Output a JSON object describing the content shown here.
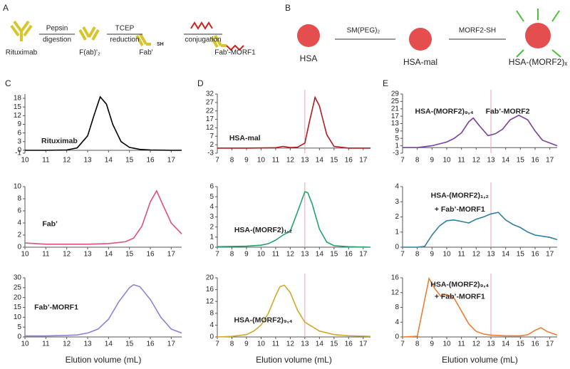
{
  "schematic": {
    "panel_a": "A",
    "panel_b": "B",
    "rituximab": "Rituximab",
    "pepsin": "Pepsin",
    "digestion": "digestion",
    "fab2": "F(ab)'₂",
    "tcep": "TCEP",
    "reduction": "reduction",
    "fab": "Fab'",
    "sh": "SH",
    "conjugation": "conjugation",
    "fab_morf1": "Fab'-MORF1",
    "hsa": "HSA",
    "smpeg": "SM(PEG)₂",
    "hsa_mal": "HSA-mal",
    "morf2sh": "MORF2-SH",
    "hsa_morf2x": "HSA-(MORF2)ₓ"
  },
  "chart_data": [
    {
      "type": "line",
      "panel": "C",
      "color": "#000000",
      "annotations": [
        "Rituximab"
      ],
      "x": [
        10,
        11,
        12,
        12.5,
        13,
        13.3,
        13.6,
        13.9,
        14.2,
        14.6,
        15,
        15.5,
        16,
        17,
        17.5
      ],
      "values": [
        0,
        0,
        0.1,
        0.8,
        5,
        12,
        18.5,
        16,
        9,
        3,
        1,
        0.3,
        0.1,
        0,
        0
      ],
      "xlim": [
        10,
        17.5
      ],
      "xticks": [
        10,
        11,
        12,
        13,
        14,
        15,
        16,
        17
      ],
      "ylim": [
        -1,
        19.5
      ],
      "yticks": [
        -1,
        0,
        3,
        6,
        9,
        12,
        15,
        18
      ]
    },
    {
      "type": "line",
      "color": "#e0507a",
      "annotations": [
        "Fab’"
      ],
      "x": [
        10,
        11,
        12,
        13,
        14,
        14.8,
        15.2,
        15.6,
        16,
        16.3,
        16.6,
        17,
        17.5
      ],
      "values": [
        0.7,
        0.5,
        0.5,
        0.5,
        0.6,
        0.9,
        1.5,
        3.5,
        7.5,
        9.3,
        7,
        4,
        2.2
      ],
      "xlim": [
        10,
        17.5
      ],
      "xticks": [
        10,
        11,
        12,
        13,
        14,
        15,
        16,
        17
      ],
      "ylim": [
        0,
        10
      ],
      "yticks": [
        0,
        2,
        4,
        6,
        8,
        10
      ]
    },
    {
      "type": "line",
      "color": "#8c82d8",
      "annotations": [
        "Fab’-MORF1"
      ],
      "xlabel": "Elution volume (mL)",
      "x": [
        10,
        11,
        12,
        12.5,
        13,
        13.5,
        14,
        14.5,
        15,
        15.2,
        15.5,
        16,
        16.5,
        17,
        17.5
      ],
      "values": [
        0.5,
        0.5,
        0.8,
        1,
        2,
        4,
        9,
        18,
        25,
        26.5,
        25.5,
        19,
        10,
        4,
        2
      ],
      "xlim": [
        10,
        17.5
      ],
      "xticks": [
        10,
        11,
        12,
        13,
        14,
        15,
        16,
        17
      ],
      "ylim": [
        0,
        30
      ],
      "yticks": [
        0,
        5,
        10,
        15,
        20,
        25,
        30
      ]
    },
    {
      "type": "line",
      "panel": "D",
      "color": "#b31b1b",
      "annotations": [
        "HSA-mal"
      ],
      "vline": 13,
      "x": [
        7,
        9,
        11,
        11.5,
        12,
        12.5,
        13,
        13.3,
        13.7,
        14,
        14.5,
        15,
        16,
        17.5
      ],
      "values": [
        0,
        0,
        0.2,
        1,
        0.3,
        0.5,
        3,
        15,
        30,
        25,
        8,
        1,
        0,
        0
      ],
      "xlim": [
        7,
        17.5
      ],
      "xticks": [
        7,
        8,
        9,
        10,
        11,
        12,
        13,
        14,
        15,
        16,
        17
      ],
      "ylim": [
        -3,
        32
      ],
      "yticks": [
        -3,
        2,
        7,
        12,
        17,
        22,
        27,
        32
      ]
    },
    {
      "type": "line",
      "color": "#22a36b",
      "annotations": [
        "HSA-(MORF2)₁,₂"
      ],
      "vline": 13,
      "x": [
        7,
        9,
        10,
        10.5,
        11,
        11.5,
        12,
        12.5,
        13,
        13.2,
        13.5,
        14,
        14.5,
        15,
        16,
        17.5
      ],
      "values": [
        0.05,
        0.1,
        0.2,
        0.35,
        0.7,
        1.2,
        1.6,
        3.5,
        5.5,
        5.4,
        4.3,
        1.8,
        0.5,
        0.15,
        0.05,
        0
      ],
      "xlim": [
        7,
        17.5
      ],
      "xticks": [
        7,
        8,
        9,
        10,
        11,
        12,
        13,
        14,
        15,
        16,
        17
      ],
      "ylim": [
        0,
        6
      ],
      "yticks": [
        0,
        1,
        2,
        3,
        4,
        5,
        6
      ]
    },
    {
      "type": "line",
      "color": "#d4a72c",
      "annotations": [
        "HSA-(MORF2)₉,₄"
      ],
      "vline": 13,
      "xlabel": "Elution volume (mL)",
      "x": [
        7,
        8,
        9,
        9.5,
        10,
        10.5,
        11,
        11.3,
        11.6,
        12,
        12.5,
        13,
        14,
        15,
        16,
        17.5
      ],
      "values": [
        0,
        0.2,
        0.8,
        2,
        4,
        8,
        14,
        17,
        17.5,
        15,
        9,
        5,
        2,
        0.8,
        0.4,
        0.2
      ],
      "xlim": [
        7,
        17.5
      ],
      "xticks": [
        7,
        8,
        9,
        10,
        11,
        12,
        13,
        14,
        15,
        16,
        17
      ],
      "ylim": [
        0,
        20
      ],
      "yticks": [
        0,
        4,
        8,
        12,
        16,
        20
      ]
    },
    {
      "type": "line",
      "panel": "E",
      "color": "#7a3fa0",
      "annotations": [
        "HSA-(MORF2)₉,₄",
        "Fab’-MORF2"
      ],
      "vline": 13,
      "x": [
        7,
        8,
        9,
        10,
        10.5,
        11,
        11.5,
        11.8,
        12.2,
        12.8,
        13.3,
        13.8,
        14.3,
        14.9,
        15.5,
        16,
        16.5,
        17.5
      ],
      "values": [
        0,
        0,
        1,
        3,
        5,
        8,
        14,
        16,
        12,
        6.5,
        7.5,
        10,
        15,
        17.5,
        15,
        9,
        4,
        1
      ],
      "xlim": [
        7,
        17.5
      ],
      "xticks": [
        7,
        8,
        9,
        10,
        11,
        12,
        13,
        14,
        15,
        16,
        17
      ],
      "ylim": [
        -3,
        29
      ],
      "yticks": [
        -3,
        1,
        5,
        9,
        13,
        17,
        21,
        25,
        29
      ]
    },
    {
      "type": "line",
      "color": "#2f7fa0",
      "annotations": [
        "HSA-(MORF2)₁,₂",
        "+ Fab’-MORF1"
      ],
      "vline": 13,
      "x": [
        7,
        8,
        8.5,
        9,
        9.5,
        10,
        10.5,
        11,
        11.5,
        12,
        12.5,
        13,
        13.5,
        14,
        14.5,
        15,
        15.5,
        16,
        17,
        17.5
      ],
      "values": [
        0,
        0,
        0.05,
        0.8,
        1.4,
        1.75,
        1.8,
        1.7,
        1.6,
        1.85,
        2,
        2.2,
        2.3,
        1.8,
        1.5,
        1.3,
        1,
        0.8,
        0.65,
        0.5
      ],
      "xlim": [
        7,
        17.5
      ],
      "xticks": [
        7,
        8,
        9,
        10,
        11,
        12,
        13,
        14,
        15,
        16,
        17
      ],
      "ylim": [
        0,
        4
      ],
      "yticks": [
        0,
        1,
        2,
        3,
        4
      ]
    },
    {
      "type": "line",
      "color": "#ec7d31",
      "annotations": [
        "HSA-(MORF2)₉,₄",
        "+ Fab’-MORF1"
      ],
      "vline": 13,
      "xlabel": "Elution volume (mL)",
      "x": [
        7,
        8,
        8.5,
        8.8,
        9.2,
        9.6,
        10,
        10.5,
        11,
        11.5,
        12,
        12.5,
        13,
        14,
        15,
        15.5,
        16,
        16.4,
        16.8,
        17.5
      ],
      "values": [
        0,
        0.2,
        10,
        15.8,
        13,
        11,
        11.5,
        10.5,
        7,
        3.5,
        1.5,
        0.8,
        0.5,
        0.3,
        0.3,
        0.6,
        1.8,
        2.5,
        1.5,
        0.5
      ],
      "xlim": [
        7,
        17.5
      ],
      "xticks": [
        7,
        8,
        9,
        10,
        11,
        12,
        13,
        14,
        15,
        16,
        17
      ],
      "ylim": [
        0,
        16
      ],
      "yticks": [
        0,
        4,
        8,
        12,
        16
      ]
    }
  ]
}
